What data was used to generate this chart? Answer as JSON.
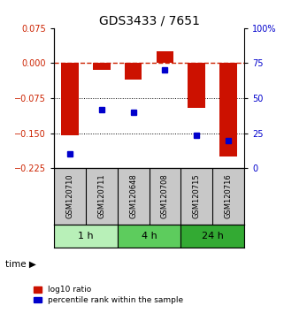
{
  "title": "GDS3433 / 7651",
  "samples": [
    "GSM120710",
    "GSM120711",
    "GSM120648",
    "GSM120708",
    "GSM120715",
    "GSM120716"
  ],
  "red_bars": [
    -0.155,
    -0.015,
    -0.035,
    0.025,
    -0.095,
    -0.2
  ],
  "blue_dots_ratio": [
    -0.195,
    -0.1,
    -0.105,
    -0.015,
    -0.155,
    -0.165
  ],
  "ymin": -0.225,
  "ymax": 0.075,
  "yticks_left": [
    0.075,
    0,
    -0.075,
    -0.15,
    -0.225
  ],
  "yticks_right_vals": [
    0.075,
    0.0,
    -0.075,
    -0.15,
    -0.225
  ],
  "yticks_right_labels": [
    "100%",
    "75",
    "50",
    "25",
    "0"
  ],
  "hline_dashed": 0,
  "hlines_dotted": [
    -0.075,
    -0.15
  ],
  "time_groups": [
    {
      "label": "1 h",
      "cols": [
        0,
        1
      ],
      "color": "#b8f0b8"
    },
    {
      "label": "4 h",
      "cols": [
        2,
        3
      ],
      "color": "#5dcc5d"
    },
    {
      "label": "24 h",
      "cols": [
        4,
        5
      ],
      "color": "#33aa33"
    }
  ],
  "bar_color": "#cc1100",
  "dot_color": "#0000cc",
  "dashed_line_color": "#cc2200",
  "dotted_line_color": "#000000",
  "bar_width": 0.55,
  "legend_red_label": "log10 ratio",
  "legend_blue_label": "percentile rank within the sample",
  "background_color": "#ffffff",
  "title_fontsize": 10,
  "tick_fontsize": 7,
  "sample_label_fontsize": 6,
  "time_fontsize": 8,
  "legend_fontsize": 6.5,
  "labels_bg": "#c8c8c8"
}
